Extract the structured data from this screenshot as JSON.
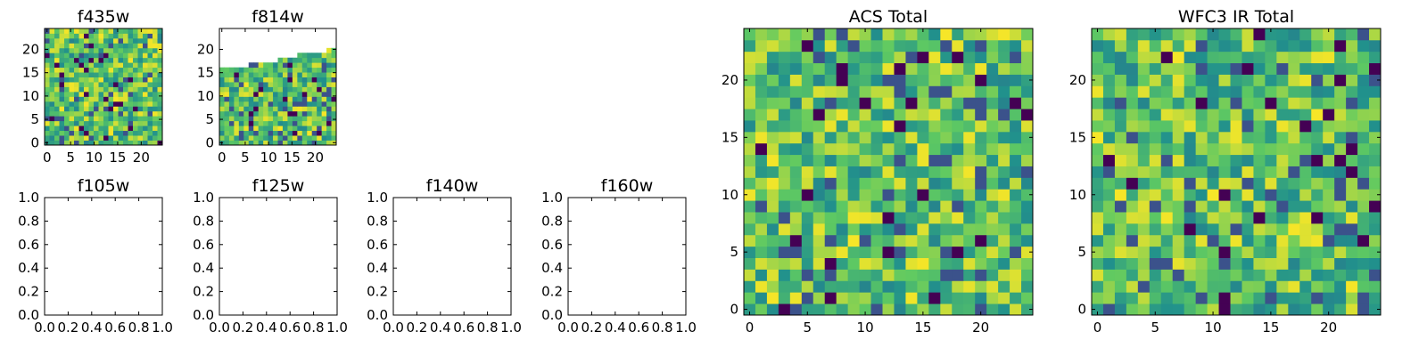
{
  "chart_data": [
    {
      "type": "heatmap",
      "title": "f435w",
      "grid": [
        24,
        24
      ],
      "xlim": [
        0,
        24
      ],
      "ylim": [
        0,
        24
      ],
      "xticks": [
        0,
        5,
        10,
        15,
        20
      ],
      "yticks": [
        0,
        5,
        10,
        15,
        20
      ],
      "coverage_top_row": [
        24,
        24,
        24,
        24,
        24,
        24,
        24,
        24,
        24,
        24,
        24,
        24,
        24,
        24,
        24,
        24,
        24,
        24,
        24,
        24,
        24,
        24,
        24,
        24
      ],
      "seed": 11,
      "colormap": "viridis"
    },
    {
      "type": "heatmap",
      "title": "f814w",
      "grid": [
        24,
        24
      ],
      "xlim": [
        0,
        24
      ],
      "ylim": [
        0,
        24
      ],
      "xticks": [
        0,
        5,
        10,
        15,
        20
      ],
      "yticks": [
        0,
        5,
        10,
        15,
        20
      ],
      "coverage_top_row": [
        16,
        16,
        16,
        16,
        16,
        16,
        17,
        17,
        17,
        17,
        17,
        17,
        18,
        18,
        18,
        18,
        19,
        19,
        19,
        19,
        19,
        19,
        20,
        20
      ],
      "seed": 23,
      "colormap": "viridis"
    },
    {
      "type": "empty",
      "title": "f105w",
      "xlim": [
        0,
        1
      ],
      "ylim": [
        0,
        1
      ],
      "xticks": [
        "0.0",
        "0.2",
        "0.4",
        "0.6",
        "0.8",
        "1.0"
      ],
      "yticks": [
        "0.0",
        "0.2",
        "0.4",
        "0.6",
        "0.8",
        "1.0"
      ]
    },
    {
      "type": "empty",
      "title": "f125w",
      "xlim": [
        0,
        1
      ],
      "ylim": [
        0,
        1
      ],
      "xticks": [
        "0.0",
        "0.2",
        "0.4",
        "0.6",
        "0.8",
        "1.0"
      ],
      "yticks": [
        "0.0",
        "0.2",
        "0.4",
        "0.6",
        "0.8",
        "1.0"
      ]
    },
    {
      "type": "empty",
      "title": "f140w",
      "xlim": [
        0,
        1
      ],
      "ylim": [
        0,
        1
      ],
      "xticks": [
        "0.0",
        "0.2",
        "0.4",
        "0.6",
        "0.8",
        "1.0"
      ],
      "yticks": [
        "0.0",
        "0.2",
        "0.4",
        "0.6",
        "0.8",
        "1.0"
      ]
    },
    {
      "type": "empty",
      "title": "f160w",
      "xlim": [
        0,
        1
      ],
      "ylim": [
        0,
        1
      ],
      "xticks": [
        "0.0",
        "0.2",
        "0.4",
        "0.6",
        "0.8",
        "1.0"
      ],
      "yticks": [
        "0.0",
        "0.2",
        "0.4",
        "0.6",
        "0.8",
        "1.0"
      ]
    },
    {
      "type": "heatmap",
      "title": "ACS Total",
      "grid": [
        25,
        25
      ],
      "xlim": [
        0,
        24
      ],
      "ylim": [
        0,
        24
      ],
      "xticks": [
        0,
        5,
        10,
        15,
        20
      ],
      "yticks": [
        0,
        5,
        10,
        15,
        20
      ],
      "seed": 37,
      "colormap": "viridis"
    },
    {
      "type": "heatmap",
      "title": "WFC3 IR Total",
      "grid": [
        25,
        25
      ],
      "xlim": [
        0,
        24
      ],
      "ylim": [
        0,
        24
      ],
      "xticks": [
        0,
        5,
        10,
        15,
        20
      ],
      "yticks": [
        0,
        5,
        10,
        15,
        20
      ],
      "seed": 53,
      "colormap": "viridis"
    }
  ],
  "colors": {
    "viridis": [
      "#440154",
      "#3b528b",
      "#21918c",
      "#5ec962",
      "#fde725"
    ],
    "frame": "#000000",
    "background": "#ffffff"
  }
}
